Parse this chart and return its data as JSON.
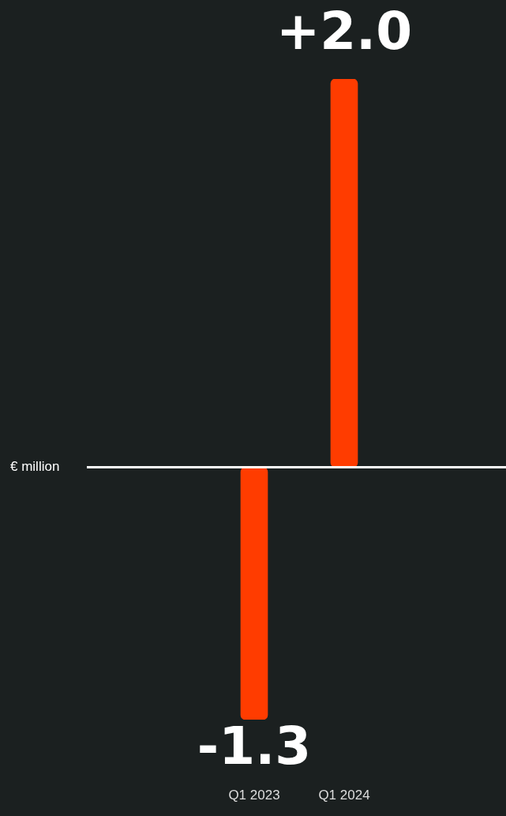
{
  "chart_data": {
    "type": "bar",
    "annotations": [
      "€ million"
    ],
    "categories": [
      "Q1 2023",
      "Q1 2024"
    ],
    "values": [
      -1.3,
      2.0
    ],
    "value_labels": [
      "-1.3",
      "+2.0"
    ],
    "color": "#ff3c00",
    "legend": false
  }
}
